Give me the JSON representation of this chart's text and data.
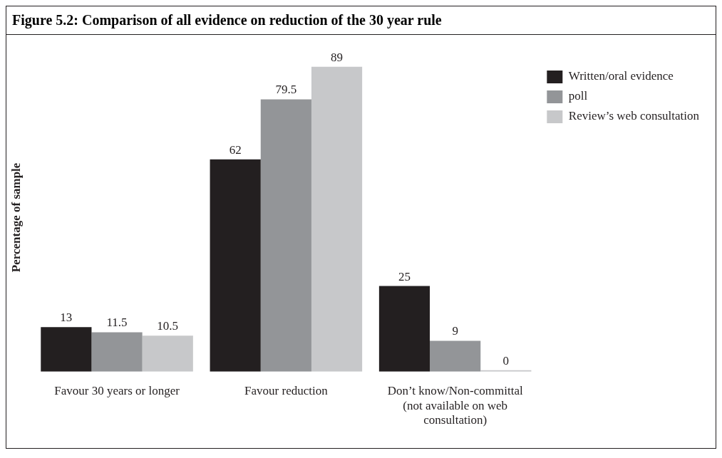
{
  "chart_data": {
    "type": "bar",
    "title": "Figure 5.2: Comparison of all evidence on reduction of the 30 year rule",
    "ylabel": "Percentage of sample",
    "categories": [
      "Favour 30 years or longer",
      "Favour reduction",
      "Don’t know/Non-committal (not available on web consultation)"
    ],
    "series": [
      {
        "name": "Written/oral evidence",
        "color": "#231f20",
        "values": [
          13,
          62,
          25
        ]
      },
      {
        "name": "poll",
        "color": "#939598",
        "values": [
          11.5,
          79.5,
          9
        ]
      },
      {
        "name": "Review’s web consultation",
        "color": "#c7c8ca",
        "values": [
          10.5,
          89,
          0
        ]
      }
    ],
    "data_labels": true,
    "legend": "top right",
    "grid": false
  }
}
